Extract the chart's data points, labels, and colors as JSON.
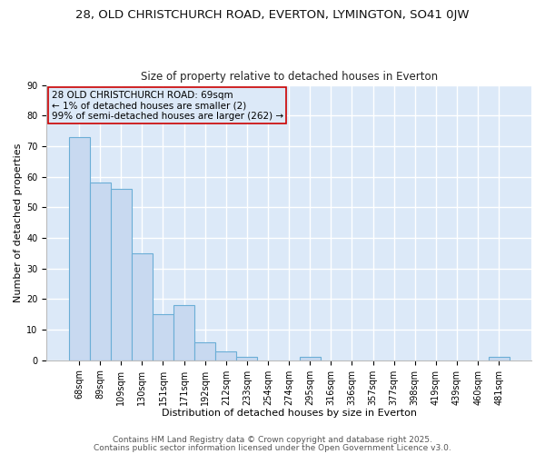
{
  "title_line1": "28, OLD CHRISTCHURCH ROAD, EVERTON, LYMINGTON, SO41 0JW",
  "title_line2": "Size of property relative to detached houses in Everton",
  "xlabel": "Distribution of detached houses by size in Everton",
  "ylabel": "Number of detached properties",
  "categories": [
    "68sqm",
    "89sqm",
    "109sqm",
    "130sqm",
    "151sqm",
    "171sqm",
    "192sqm",
    "212sqm",
    "233sqm",
    "254sqm",
    "274sqm",
    "295sqm",
    "316sqm",
    "336sqm",
    "357sqm",
    "377sqm",
    "398sqm",
    "419sqm",
    "439sqm",
    "460sqm",
    "481sqm"
  ],
  "values": [
    73,
    58,
    56,
    35,
    15,
    18,
    6,
    3,
    1,
    0,
    0,
    1,
    0,
    0,
    0,
    0,
    0,
    0,
    0,
    0,
    1
  ],
  "bar_color": "#c8d9f0",
  "bar_edge_color": "#6baed6",
  "annotation_text": "28 OLD CHRISTCHURCH ROAD: 69sqm\n← 1% of detached houses are smaller (2)\n99% of semi-detached houses are larger (262) →",
  "annotation_box_edge": "#cc0000",
  "background_color": "#ffffff",
  "plot_bg_color": "#dce9f8",
  "ylim": [
    0,
    90
  ],
  "yticks": [
    0,
    10,
    20,
    30,
    40,
    50,
    60,
    70,
    80,
    90
  ],
  "grid_color": "#ffffff",
  "footer_line1": "Contains HM Land Registry data © Crown copyright and database right 2025.",
  "footer_line2": "Contains public sector information licensed under the Open Government Licence v3.0.",
  "title_fontsize": 9.5,
  "subtitle_fontsize": 8.5,
  "axis_label_fontsize": 8,
  "tick_fontsize": 7,
  "annotation_fontsize": 7.5,
  "footer_fontsize": 6.5
}
